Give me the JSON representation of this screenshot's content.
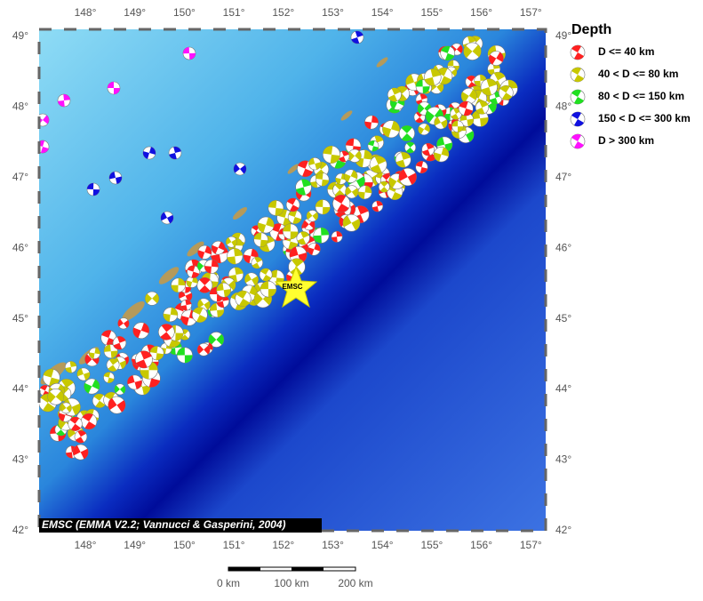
{
  "map": {
    "lon_labels": [
      "148°",
      "149°",
      "150°",
      "151°",
      "152°",
      "153°",
      "154°",
      "155°",
      "156°",
      "157°"
    ],
    "lat_labels": [
      "49°",
      "48°",
      "47°",
      "46°",
      "45°",
      "44°",
      "43°",
      "42°"
    ],
    "marker_label": "EMSC",
    "credit": "EMSC (EMMA V2.2; Vannucci & Gasperini, 2004)",
    "scale_labels": [
      "0 km",
      "100 km",
      "200 km"
    ]
  },
  "legend": {
    "title": "Depth",
    "entries": [
      {
        "label": "D <= 40 km",
        "color": "#ff2020"
      },
      {
        "label": "40 < D <= 80 km",
        "color": "#c8c800"
      },
      {
        "label": "80 < D <= 150 km",
        "color": "#20e020"
      },
      {
        "label": "150 < D <= 300 km",
        "color": "#1010e0"
      },
      {
        "label": "D > 300 km",
        "color": "#ff10ff"
      }
    ]
  }
}
